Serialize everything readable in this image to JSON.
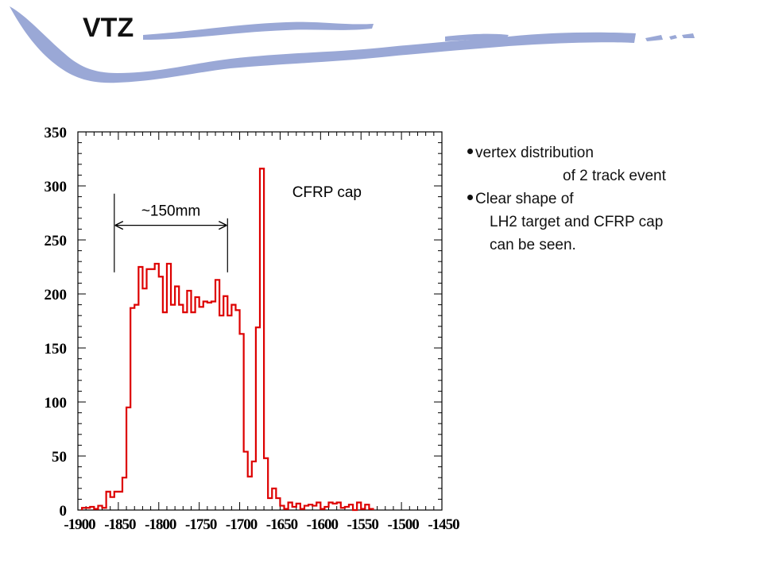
{
  "slide": {
    "title": "VTZ"
  },
  "notes": {
    "bullet1_line1": "vertex distribution",
    "bullet1_line2": "of 2 track event",
    "bullet2_line1": "Clear shape of",
    "bullet2_line2": "LH2 target and CFRP cap",
    "bullet2_line3": "can be seen."
  },
  "chart_data": {
    "type": "histogram",
    "xlim": [
      -1900,
      -1450
    ],
    "ylim": [
      0,
      350
    ],
    "x_ticks": [
      -1900,
      -1850,
      -1800,
      -1750,
      -1700,
      -1650,
      -1600,
      -1550,
      -1500,
      -1450
    ],
    "x_tick_labels": [
      "-1900",
      "-1850",
      "-1800",
      "-1750",
      "-1700",
      "-1650",
      "-1600",
      "-1550",
      "-1500",
      "-1450"
    ],
    "y_ticks": [
      0,
      50,
      100,
      150,
      200,
      250,
      300,
      350
    ],
    "y_tick_labels": [
      "0",
      "50",
      "100",
      "150",
      "200",
      "250",
      "300",
      "350"
    ],
    "bin_width": 5,
    "bin_start": -1895,
    "counts": [
      2,
      2,
      3,
      1,
      4,
      2,
      17,
      12,
      17,
      17,
      30,
      95,
      187,
      190,
      225,
      205,
      223,
      223,
      228,
      216,
      183,
      228,
      190,
      207,
      190,
      183,
      203,
      183,
      197,
      188,
      193,
      192,
      193,
      213,
      180,
      198,
      180,
      190,
      185,
      163,
      54,
      31,
      45,
      169,
      316,
      48,
      11,
      20,
      11,
      4,
      1,
      7,
      3,
      6,
      1,
      4,
      5,
      4,
      7,
      1,
      3,
      7,
      6,
      7,
      2,
      3,
      5,
      0,
      7,
      1,
      5,
      1
    ],
    "color": "#dd0000",
    "annotations": [
      {
        "text": "~150mm",
        "x1": -1855,
        "x2": -1715,
        "arrow_y": 276
      },
      {
        "text": "CFRP cap",
        "x": -1635,
        "y": 306
      }
    ]
  }
}
